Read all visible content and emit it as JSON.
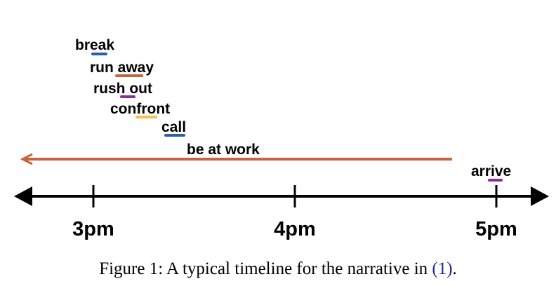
{
  "colors": {
    "axis": "#000000",
    "long_event": "#c8643a",
    "blue": "#2b5fa8",
    "orange": "#c8643a",
    "purple": "#8a2b9e",
    "yellow": "#f2c14e"
  },
  "timeline": {
    "ticks": [
      {
        "label": "3pm",
        "value": 15
      },
      {
        "label": "4pm",
        "value": 16
      },
      {
        "label": "5pm",
        "value": 17
      }
    ]
  },
  "events": [
    {
      "label": "break",
      "color": "blue"
    },
    {
      "label": "run away",
      "color": "orange"
    },
    {
      "label": "rush out",
      "color": "purple"
    },
    {
      "label": "confront",
      "color": "yellow"
    },
    {
      "label": "call",
      "color": "blue"
    },
    {
      "label": "arrive",
      "color": "purple"
    }
  ],
  "long_event": {
    "label": "be at work"
  },
  "caption": {
    "prefix": "Figure 1: A typical timeline for the narrative in ",
    "ref": "(1)",
    "suffix": "."
  }
}
